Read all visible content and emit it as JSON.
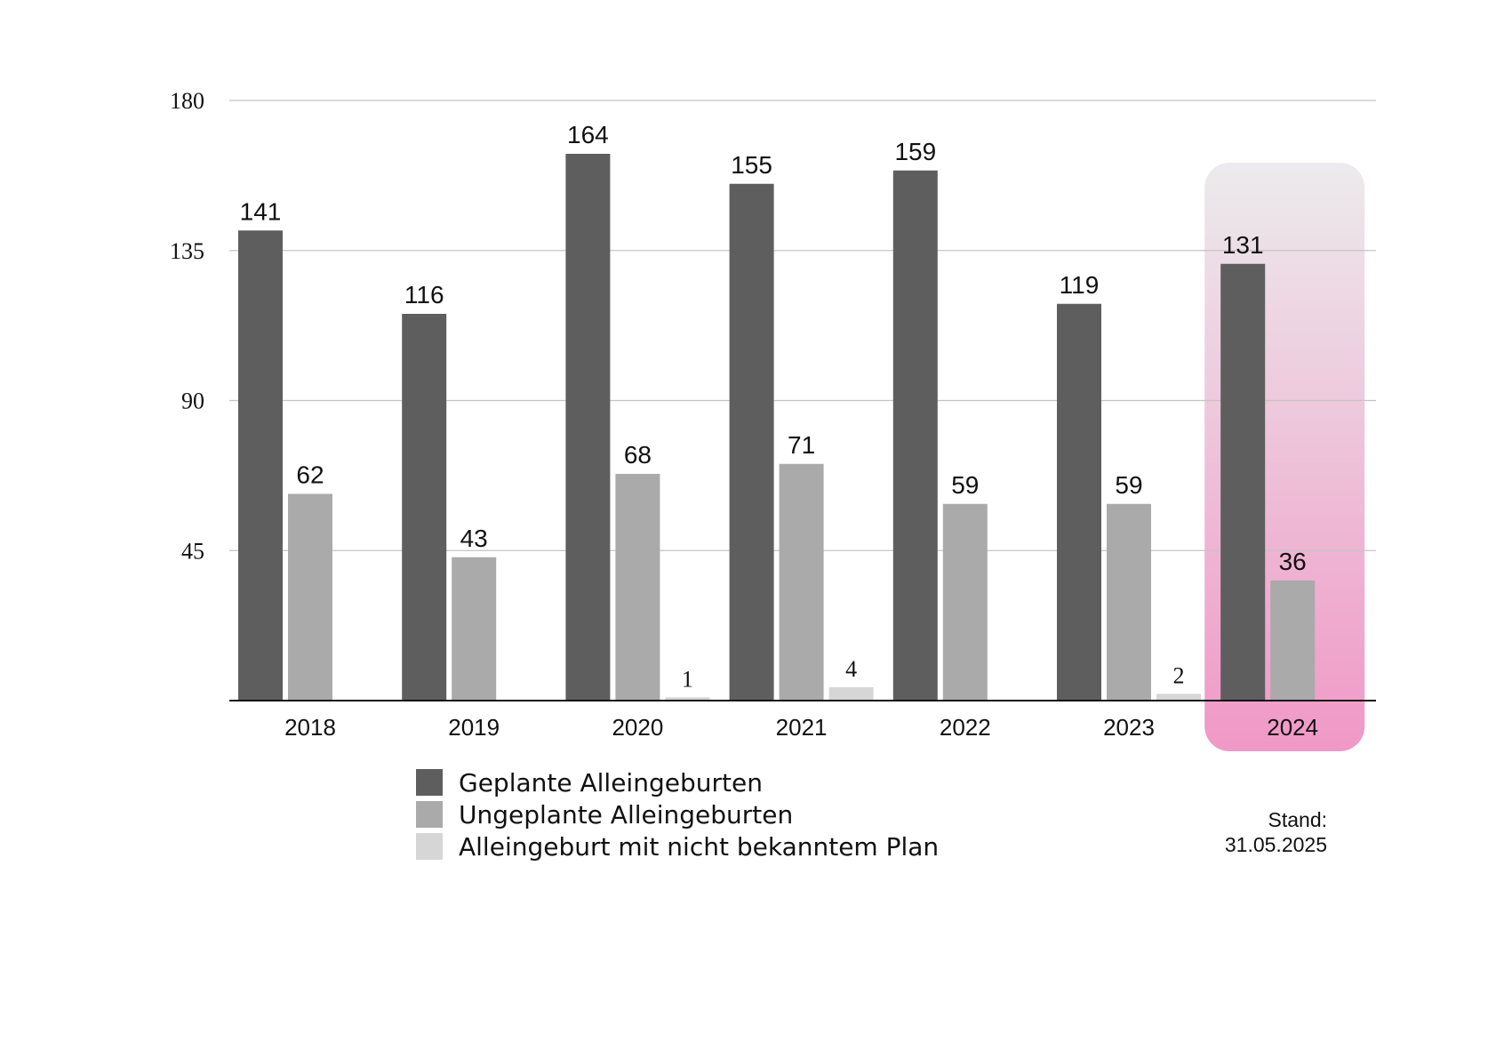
{
  "chart_data": {
    "type": "bar",
    "categories": [
      "2018",
      "2019",
      "2020",
      "2021",
      "2022",
      "2023",
      "2024"
    ],
    "series": [
      {
        "name": "Geplante Alleingeburten",
        "color": "#5e5e5e",
        "values": [
          141,
          116,
          164,
          155,
          159,
          119,
          131
        ],
        "labels": [
          "141",
          "116",
          "164",
          "155",
          "159",
          "119",
          "131"
        ]
      },
      {
        "name": "Ungeplante Alleingeburten",
        "color": "#aaaaaa",
        "values": [
          62,
          43,
          68,
          71,
          59,
          59,
          36
        ],
        "labels": [
          "62",
          "43",
          "68",
          "71",
          "59",
          "59",
          "36"
        ]
      },
      {
        "name": "Alleingeburt mit nicht bekanntem Plan",
        "color": "#d6d6d6",
        "values": [
          0,
          0,
          1,
          4,
          0,
          2,
          0
        ],
        "labels": [
          "",
          "",
          "1",
          "4",
          "",
          "2",
          ""
        ]
      }
    ],
    "yticks": [
      "45",
      "90",
      "135",
      "180"
    ],
    "ylim": [
      0,
      180
    ],
    "grid": true,
    "highlight": {
      "category": "2024",
      "colors": [
        "#ecebec",
        "#f098c6"
      ]
    },
    "legend_position": "bottom-center"
  },
  "footnote": {
    "line1": "Stand:",
    "line2": "31.05.2025"
  }
}
